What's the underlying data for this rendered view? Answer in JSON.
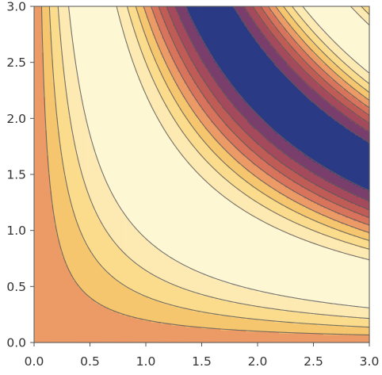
{
  "chart_data": {
    "type": "contour",
    "title": "",
    "xlabel": "",
    "ylabel": "",
    "xlim": [
      0,
      3
    ],
    "ylim": [
      0,
      3
    ],
    "x_ticks": [
      "0.0",
      "0.5",
      "1.0",
      "1.5",
      "2.0",
      "2.5",
      "3.0"
    ],
    "y_ticks": [
      "0.0",
      "0.5",
      "1.0",
      "1.5",
      "2.0",
      "2.5",
      "3.0"
    ],
    "function": "sin(x*y)",
    "contour_levels": [
      -0.8,
      -0.6,
      -0.4,
      -0.2,
      0.0,
      0.2,
      0.4,
      0.6,
      0.8
    ],
    "band_colors": [
      "#2b3a85",
      "#7a3e6c",
      "#a44a5c",
      "#c05c56",
      "#d8735c",
      "#ec9a66",
      "#f5c66e",
      "#fbdc8c",
      "#fde9b2",
      "#fef7d4"
    ],
    "colors": {
      "lowest_band": "#2b3a85",
      "highest_band": "#fef7d4",
      "contour_lines": "#5a5a5a"
    },
    "grid": false,
    "legend": "none"
  }
}
